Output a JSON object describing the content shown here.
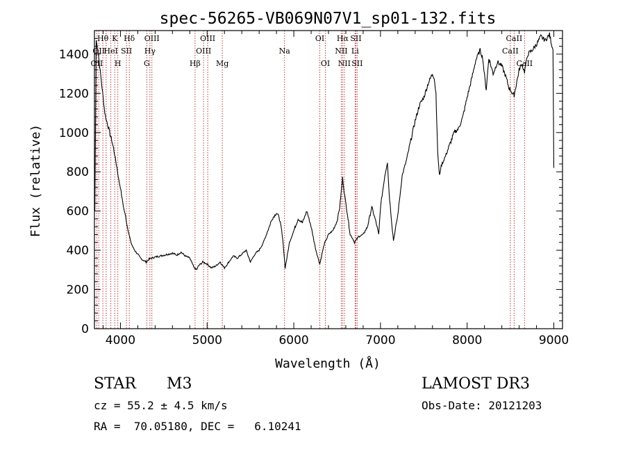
{
  "chart_data": {
    "type": "line",
    "title": "spec-56265-VB069N07V1_sp01-132.fits",
    "xlabel": "Wavelength (Å)",
    "ylabel": "Flux (relative)",
    "xlim": [
      3700,
      9100
    ],
    "ylim": [
      0,
      1520
    ],
    "xticks": [
      4000,
      5000,
      6000,
      7000,
      8000,
      9000
    ],
    "yticks": [
      0,
      200,
      400,
      600,
      800,
      1000,
      1200,
      1400
    ],
    "grid": false,
    "line_color": "#000000",
    "marker_color": "#b22222",
    "series": [
      {
        "x": [
          3705,
          3720,
          3740,
          3760,
          3780,
          3800,
          3820,
          3840,
          3860,
          3880,
          3900,
          3920,
          3940,
          3960,
          3980,
          4000,
          4020,
          4040,
          4060,
          4080,
          4100,
          4120,
          4150,
          4180,
          4200,
          4230,
          4260,
          4300,
          4330,
          4360,
          4400,
          4450,
          4500,
          4550,
          4600,
          4650,
          4700,
          4750,
          4800,
          4850,
          4880,
          4900,
          4950,
          5000,
          5050,
          5100,
          5150,
          5200,
          5250,
          5300,
          5350,
          5400,
          5450,
          5500,
          5550,
          5600,
          5650,
          5700,
          5750,
          5800,
          5830,
          5860,
          5880,
          5900,
          5920,
          5950,
          6000,
          6050,
          6100,
          6150,
          6200,
          6250,
          6280,
          6300,
          6350,
          6400,
          6450,
          6500,
          6530,
          6563,
          6580,
          6600,
          6620,
          6650,
          6680,
          6700,
          6750,
          6800,
          6850,
          6900,
          6950,
          6980,
          7000,
          7050,
          7080,
          7100,
          7130,
          7150,
          7200,
          7250,
          7300,
          7350,
          7400,
          7450,
          7500,
          7550,
          7600,
          7620,
          7640,
          7650,
          7660,
          7680,
          7700,
          7750,
          7800,
          7850,
          7900,
          7950,
          8000,
          8050,
          8100,
          8150,
          8180,
          8200,
          8220,
          8250,
          8300,
          8350,
          8400,
          8450,
          8480,
          8500,
          8520,
          8542,
          8560,
          8600,
          8630,
          8662,
          8700,
          8750,
          8800,
          8850,
          8900,
          8950,
          8990,
          9000
        ],
        "y": [
          600,
          1470,
          1420,
          1340,
          1260,
          1180,
          1100,
          1060,
          1030,
          990,
          960,
          920,
          870,
          820,
          760,
          720,
          660,
          610,
          570,
          520,
          480,
          440,
          410,
          390,
          380,
          360,
          350,
          340,
          355,
          360,
          365,
          370,
          375,
          380,
          385,
          375,
          390,
          370,
          360,
          310,
          300,
          320,
          340,
          330,
          310,
          320,
          340,
          310,
          340,
          370,
          360,
          380,
          400,
          340,
          380,
          400,
          440,
          500,
          560,
          590,
          570,
          500,
          420,
          310,
          360,
          440,
          500,
          560,
          540,
          600,
          520,
          410,
          360,
          330,
          430,
          480,
          500,
          550,
          620,
          770,
          700,
          640,
          580,
          480,
          460,
          440,
          470,
          480,
          520,
          620,
          540,
          480,
          620,
          780,
          850,
          690,
          540,
          450,
          580,
          780,
          860,
          960,
          1060,
          1140,
          1180,
          1250,
          1300,
          1280,
          1200,
          1050,
          900,
          780,
          830,
          880,
          940,
          1000,
          1020,
          1080,
          1180,
          1270,
          1370,
          1420,
          1380,
          1290,
          1220,
          1380,
          1300,
          1360,
          1340,
          1280,
          1230,
          1220,
          1200,
          1190,
          1230,
          1320,
          1350,
          1310,
          1400,
          1420,
          1450,
          1490,
          1470,
          1500,
          1420,
          820
        ]
      }
    ],
    "line_markers": [
      {
        "x": 3727,
        "row": 2,
        "label": "OII"
      },
      {
        "x": 3750,
        "row": 1,
        "label": "OII"
      },
      {
        "x": 3797,
        "row": 0,
        "label": "Hθ"
      },
      {
        "x": 3835,
        "row": 0,
        "label": ""
      },
      {
        "x": 3889,
        "row": 1,
        "label": "HeI"
      },
      {
        "x": 3934,
        "row": 0,
        "label": "K"
      },
      {
        "x": 3970,
        "row": 2,
        "label": "H"
      },
      {
        "x": 4069,
        "row": 1,
        "label": "SII"
      },
      {
        "x": 4102,
        "row": 0,
        "label": "Hδ"
      },
      {
        "x": 4304,
        "row": 2,
        "label": "G"
      },
      {
        "x": 4340,
        "row": 1,
        "label": "Hγ"
      },
      {
        "x": 4363,
        "row": 0,
        "label": "OIII"
      },
      {
        "x": 4861,
        "row": 2,
        "label": "Hβ"
      },
      {
        "x": 4959,
        "row": 1,
        "label": "OIII"
      },
      {
        "x": 5007,
        "row": 0,
        "label": "OIII"
      },
      {
        "x": 5175,
        "row": 2,
        "label": "Mg"
      },
      {
        "x": 5893,
        "row": 1,
        "label": "Na"
      },
      {
        "x": 6300,
        "row": 0,
        "label": "OI"
      },
      {
        "x": 6364,
        "row": 2,
        "label": "OI"
      },
      {
        "x": 6548,
        "row": 1,
        "label": "NII"
      },
      {
        "x": 6563,
        "row": 0,
        "label": "Hα"
      },
      {
        "x": 6583,
        "row": 2,
        "label": "NII"
      },
      {
        "x": 6707,
        "row": 1,
        "label": "Li"
      },
      {
        "x": 6716,
        "row": 0,
        "label": "SII"
      },
      {
        "x": 6731,
        "row": 2,
        "label": "SII"
      },
      {
        "x": 8498,
        "row": 1,
        "label": "CaII"
      },
      {
        "x": 8542,
        "row": 0,
        "label": "CaII"
      },
      {
        "x": 8662,
        "row": 2,
        "label": "CaII"
      }
    ]
  },
  "info": {
    "object_class": "STAR",
    "subclass": "M3",
    "survey": "LAMOST DR3",
    "redshift": "cz = 55.2 ± 4.5 km/s",
    "obs_date": "Obs-Date: 20121203",
    "coords": "RA =  70.05180, DEC =   6.10241"
  }
}
